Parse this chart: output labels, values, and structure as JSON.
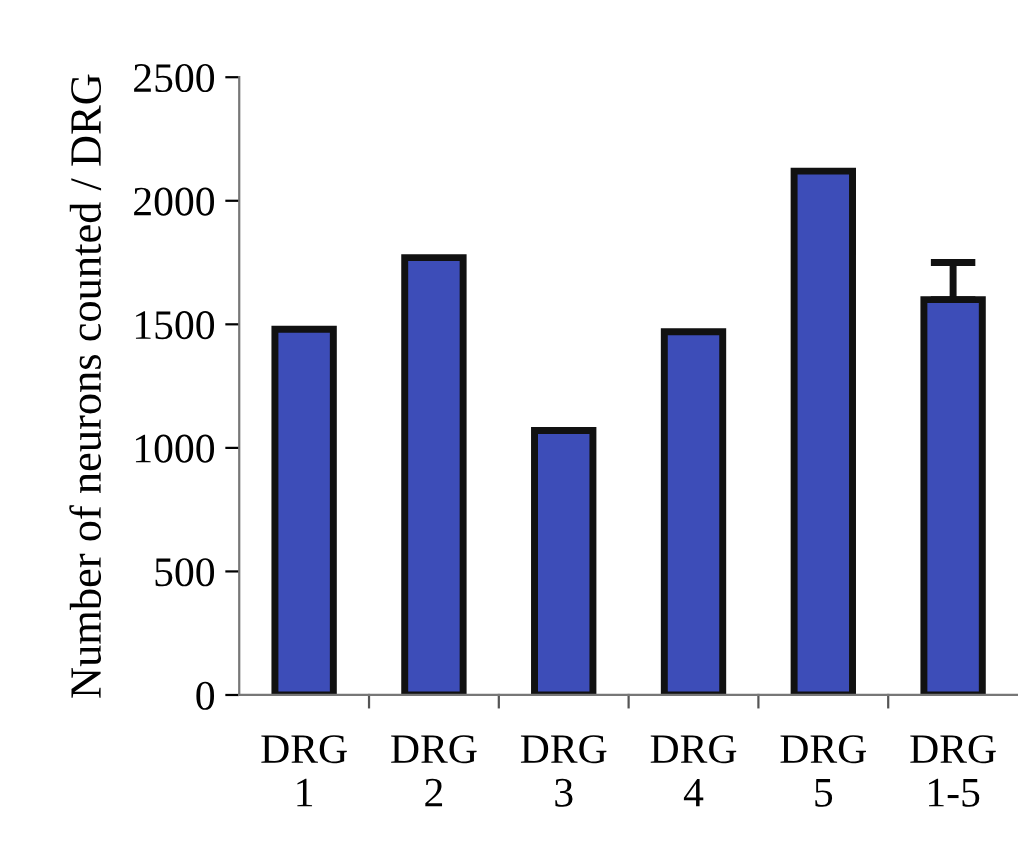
{
  "chart_data": {
    "type": "bar",
    "ylabel": "Number of neurons counted / DRG",
    "categories": [
      "DRG\n1",
      "DRG\n2",
      "DRG\n3",
      "DRG\n4",
      "DRG\n5",
      "DRG\n1-5"
    ],
    "values": [
      1480,
      1770,
      1070,
      1470,
      2120,
      1600
    ],
    "errors": [
      null,
      null,
      null,
      null,
      null,
      [
        1600,
        1750
      ]
    ],
    "color": "#3d4db8",
    "ylim": [
      0,
      2500
    ],
    "yticks": [
      0,
      500,
      1000,
      1500,
      2000,
      2500
    ],
    "grid": false
  }
}
